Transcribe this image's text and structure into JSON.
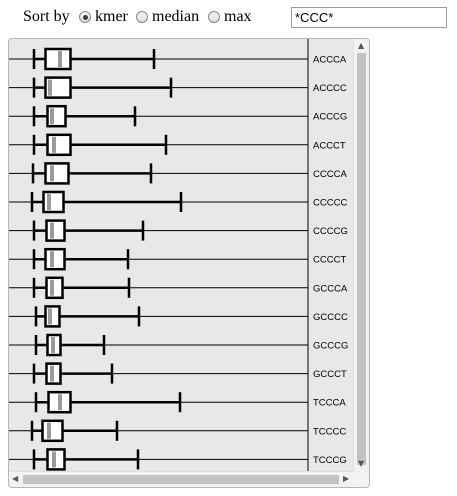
{
  "sort": {
    "label": "Sort by",
    "options": [
      {
        "label": "kmer",
        "checked": true
      },
      {
        "label": "median",
        "checked": false
      },
      {
        "label": "max",
        "checked": false
      }
    ]
  },
  "filter": {
    "value": "*CCC*"
  },
  "chart_data": {
    "type": "boxplot",
    "orientation": "horizontal",
    "series": [
      {
        "label": "ACCCA",
        "min": 25,
        "q1": 36.5,
        "median": 51,
        "q3": 61.5,
        "max": 145
      },
      {
        "label": "ACCCC",
        "min": 25,
        "q1": 36.5,
        "median": 41,
        "q3": 61.5,
        "max": 162
      },
      {
        "label": "ACCCG",
        "min": 25,
        "q1": 38.5,
        "median": 43,
        "q3": 56.5,
        "max": 126
      },
      {
        "label": "ACCCT",
        "min": 25,
        "q1": 38.5,
        "median": 45,
        "q3": 61.5,
        "max": 157
      },
      {
        "label": "CCCCA",
        "min": 24,
        "q1": 36.5,
        "median": 43,
        "q3": 59.5,
        "max": 142
      },
      {
        "label": "CCCCC",
        "min": 23,
        "q1": 34.5,
        "median": 40,
        "q3": 54.5,
        "max": 172
      },
      {
        "label": "CCCCG",
        "min": 25,
        "q1": 37.5,
        "median": 43,
        "q3": 55.5,
        "max": 134
      },
      {
        "label": "CCCCT",
        "min": 25,
        "q1": 36.5,
        "median": 43,
        "q3": 55.5,
        "max": 119
      },
      {
        "label": "GCCCA",
        "min": 25,
        "q1": 37.5,
        "median": 43,
        "q3": 53.5,
        "max": 120
      },
      {
        "label": "GCCCC",
        "min": 27,
        "q1": 36.5,
        "median": 41,
        "q3": 50.5,
        "max": 130
      },
      {
        "label": "GCCCG",
        "min": 27,
        "q1": 38.5,
        "median": 44,
        "q3": 51.5,
        "max": 95
      },
      {
        "label": "GCCCT",
        "min": 25,
        "q1": 37.5,
        "median": 43,
        "q3": 51.5,
        "max": 103
      },
      {
        "label": "TCCCA",
        "min": 27,
        "q1": 39.5,
        "median": 51,
        "q3": 61.5,
        "max": 171
      },
      {
        "label": "TCCCC",
        "min": 23,
        "q1": 33.5,
        "median": 40,
        "q3": 53.5,
        "max": 108
      },
      {
        "label": "TCCCG",
        "min": 25,
        "q1": 38.5,
        "median": 45,
        "q3": 55.5,
        "max": 129
      }
    ],
    "xlim": [
      0,
      300
    ]
  }
}
